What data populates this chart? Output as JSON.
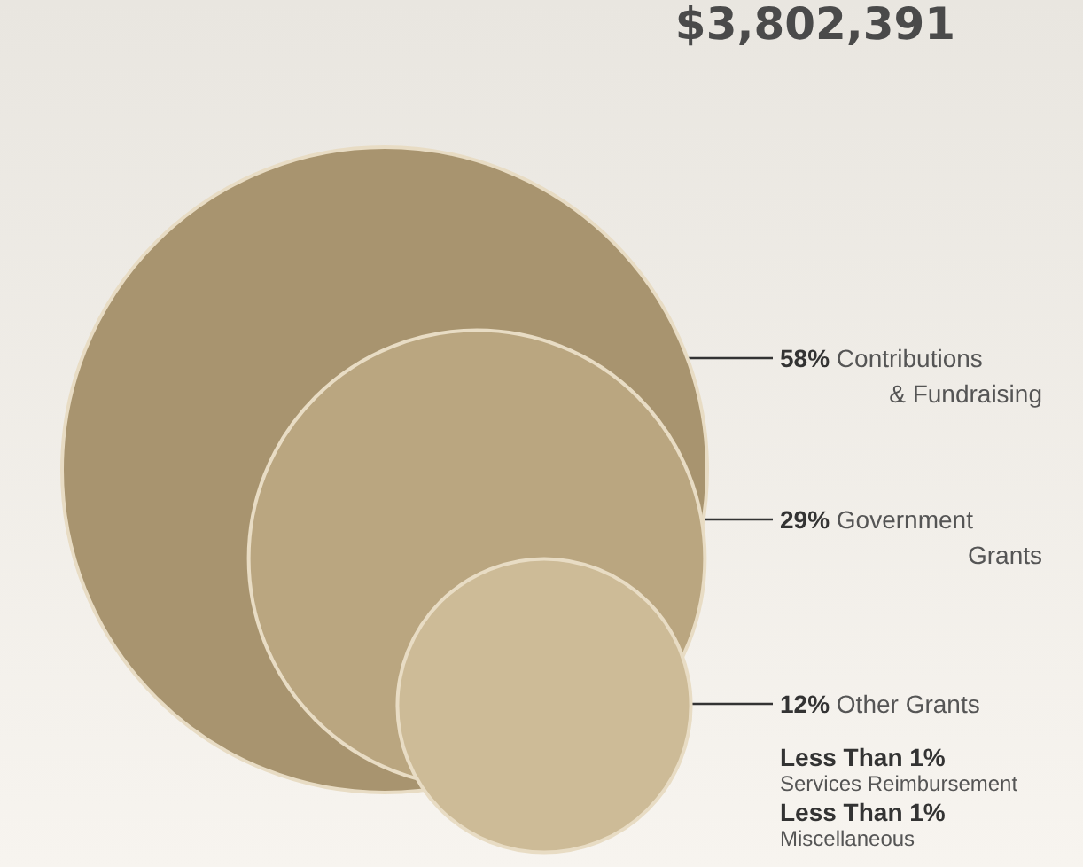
{
  "chart_data": {
    "type": "other",
    "title": "$3,802,391",
    "categories": [
      "Contributions & Fundraising",
      "Government Grants",
      "Other Grants",
      "Services Reimbursement",
      "Miscellaneous"
    ],
    "values": [
      58,
      29,
      12,
      null,
      null
    ],
    "value_labels": [
      "58%",
      "29%",
      "12%",
      "Less Than 1%",
      "Less Than 1%"
    ],
    "colors": [
      "#a8946f",
      "#baa680",
      "#cdbb97",
      null,
      null
    ]
  }
}
